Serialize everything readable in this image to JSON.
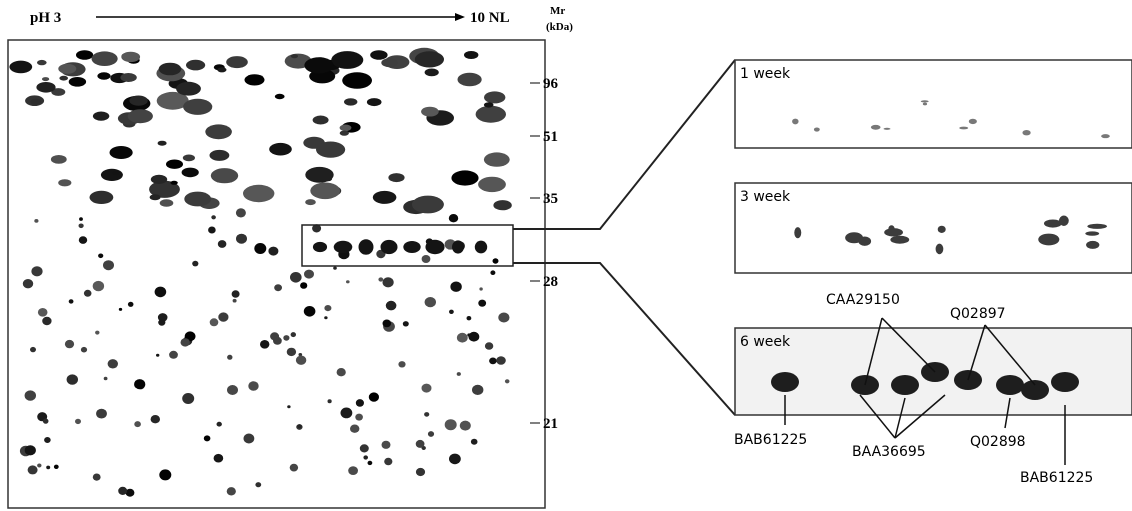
{
  "header": {
    "ph_start": "pH 3",
    "ph_end": "10 NL",
    "mr_label": "Mr",
    "mr_unit": "(kDa)"
  },
  "markers": [
    96,
    51,
    35,
    28,
    21
  ],
  "panels": [
    {
      "label": "1 week"
    },
    {
      "label": "3 week"
    },
    {
      "label": "6 week"
    }
  ],
  "annotations": [
    "CAA29150",
    "Q02897",
    "BAB61225",
    "BAA36695",
    "Q02898",
    "BAB61225"
  ]
}
